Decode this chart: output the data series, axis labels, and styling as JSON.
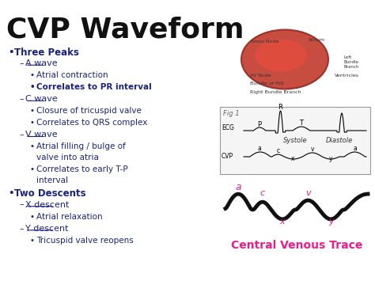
{
  "title": "CVP Waveform",
  "title_color": "#111111",
  "title_fontsize": 26,
  "title_weight": "bold",
  "background_color": "#ffffff",
  "left_text_color": "#1a237e",
  "bullet_items": [
    {
      "level": 0,
      "text": "Three Peaks",
      "bold": true,
      "underline": false,
      "bullet": "•"
    },
    {
      "level": 1,
      "text": "A wave",
      "bold": false,
      "underline": true,
      "bullet": "–"
    },
    {
      "level": 2,
      "text": "Atrial contraction",
      "bold": false,
      "underline": false,
      "bullet": "•"
    },
    {
      "level": 2,
      "text": "Correlates to PR interval",
      "bold": true,
      "underline": false,
      "bullet": "•"
    },
    {
      "level": 1,
      "text": "C wave",
      "bold": false,
      "underline": true,
      "bullet": "–"
    },
    {
      "level": 2,
      "text": "Closure of tricuspid valve",
      "bold": false,
      "underline": false,
      "bullet": "•"
    },
    {
      "level": 2,
      "text": "Correlates to QRS complex",
      "bold": false,
      "underline": false,
      "bullet": "•"
    },
    {
      "level": 1,
      "text": "V wave",
      "bold": false,
      "underline": true,
      "bullet": "–"
    },
    {
      "level": 2,
      "text": "Atrial filling / bulge of valve into atria",
      "bold": false,
      "underline": false,
      "bullet": "•"
    },
    {
      "level": 2,
      "text": "Correlates to early T-P interval",
      "bold": false,
      "underline": false,
      "bullet": "•"
    },
    {
      "level": 0,
      "text": "Two Descents",
      "bold": true,
      "underline": false,
      "bullet": "•"
    },
    {
      "level": 1,
      "text": "X descent",
      "bold": false,
      "underline": true,
      "bullet": "–"
    },
    {
      "level": 2,
      "text": "Atrial relaxation",
      "bold": false,
      "underline": false,
      "bullet": "•"
    },
    {
      "level": 1,
      "text": "Y descent",
      "bold": false,
      "underline": true,
      "bullet": "–"
    },
    {
      "level": 2,
      "text": "Tricuspid valve reopens",
      "bold": false,
      "underline": false,
      "bullet": "•"
    }
  ],
  "cvt_label": "Central Venous Trace",
  "cvt_color": "#e91e8c",
  "pink_color": "#e91e8c",
  "wave_color": "#111111"
}
